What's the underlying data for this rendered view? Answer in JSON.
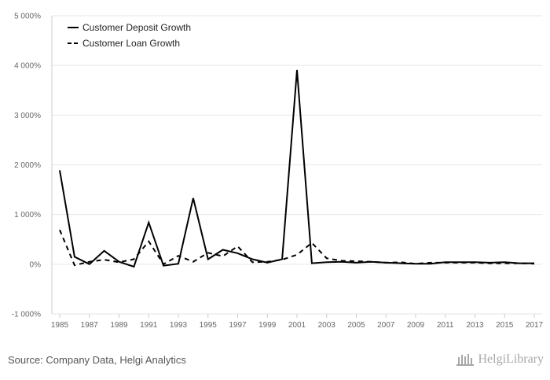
{
  "chart_data": {
    "type": "line",
    "x": [
      1985,
      1986,
      1987,
      1988,
      1989,
      1990,
      1991,
      1992,
      1993,
      1994,
      1995,
      1996,
      1997,
      1998,
      1999,
      2000,
      2001,
      2002,
      2003,
      2004,
      2005,
      2006,
      2007,
      2008,
      2009,
      2010,
      2011,
      2012,
      2013,
      2014,
      2015,
      2016,
      2017
    ],
    "series": [
      {
        "name": "Customer Deposit Growth",
        "dash": "solid",
        "values": [
          1890,
          150,
          0,
          270,
          50,
          -50,
          840,
          -30,
          10,
          1330,
          100,
          290,
          220,
          100,
          30,
          100,
          3910,
          20,
          40,
          50,
          30,
          50,
          30,
          20,
          10,
          10,
          40,
          40,
          40,
          30,
          40,
          20,
          20
        ]
      },
      {
        "name": "Customer Loan Growth",
        "dash": "dashed",
        "values": [
          690,
          -20,
          50,
          90,
          40,
          100,
          460,
          0,
          170,
          50,
          230,
          160,
          360,
          40,
          50,
          90,
          190,
          430,
          120,
          70,
          60,
          50,
          30,
          40,
          10,
          30,
          30,
          30,
          30,
          20,
          20,
          20,
          10
        ]
      }
    ],
    "xticks": [
      "1985",
      "1987",
      "1989",
      "1991",
      "1993",
      "1995",
      "1997",
      "1999",
      "2001",
      "2003",
      "2005",
      "2007",
      "2009",
      "2011",
      "2013",
      "2015",
      "2017"
    ],
    "yticks": [
      {
        "value": 5000,
        "label": "5 000%"
      },
      {
        "value": 4000,
        "label": "4 000%"
      },
      {
        "value": 3000,
        "label": "3 000%"
      },
      {
        "value": 2000,
        "label": "2 000%"
      },
      {
        "value": 1000,
        "label": "1 000%"
      },
      {
        "value": 0,
        "label": "0%"
      },
      {
        "value": -1000,
        "label": "-1 000%"
      }
    ],
    "ylim": [
      -1000,
      5000
    ],
    "xlim": [
      1985,
      2017
    ],
    "grid": true,
    "legend": "top-left",
    "colors": {
      "line": "#000000",
      "grid": "#e6e6e6",
      "axis": "#cccccc"
    }
  },
  "footer": {
    "source": "Source: Company Data, Helgi Analytics",
    "logo": "HelgiLibrary"
  }
}
